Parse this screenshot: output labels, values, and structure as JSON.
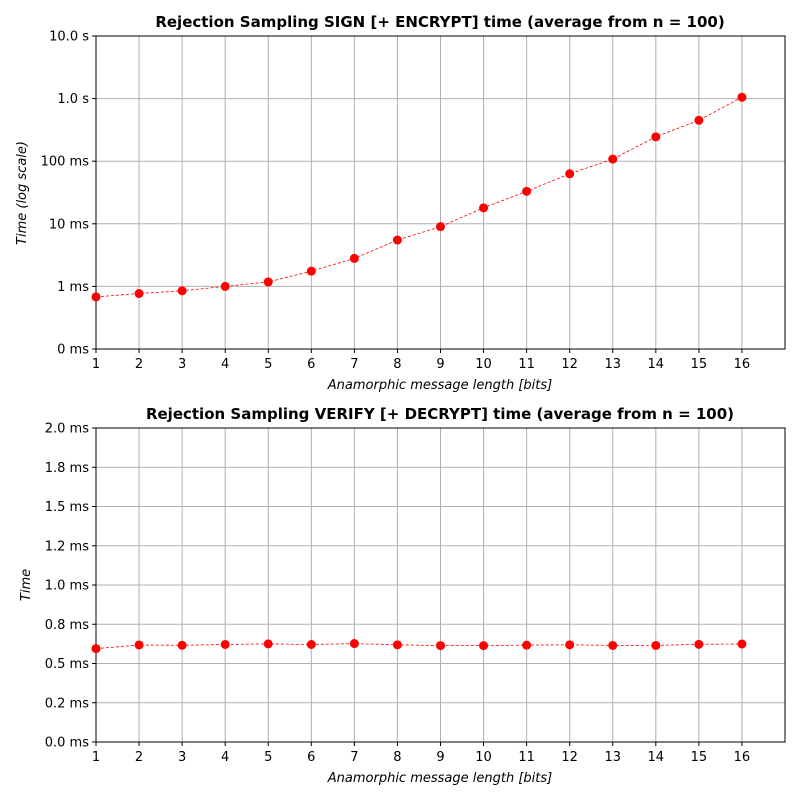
{
  "chart_data": [
    {
      "type": "line",
      "title": "Rejection Sampling SIGN [+ ENCRYPT] time (average from n = 100)",
      "xlabel": "Anamorphic message length [bits]",
      "ylabel": "Time (log scale)",
      "yscale": "log",
      "x": [
        1,
        2,
        3,
        4,
        5,
        6,
        7,
        8,
        9,
        10,
        11,
        12,
        13,
        14,
        15,
        16
      ],
      "xticks": [
        "1",
        "2",
        "3",
        "4",
        "5",
        "6",
        "7",
        "8",
        "9",
        "10",
        "11",
        "12",
        "13",
        "14",
        "15",
        "16"
      ],
      "xlim": [
        1,
        17
      ],
      "ylim_ms": [
        0.1,
        10000
      ],
      "yticks_ms": [
        0.1,
        1,
        10,
        100,
        1000,
        10000
      ],
      "ytick_labels": [
        "0 ms",
        "1 ms",
        "10 ms",
        "100 ms",
        "1.0 s",
        "10.0 s"
      ],
      "grid": true,
      "series": [
        {
          "color": "#ff0000",
          "values_ms": [
            0.68,
            0.77,
            0.85,
            1.0,
            1.18,
            1.75,
            2.8,
            5.5,
            9.0,
            18.0,
            33.0,
            63.0,
            108.0,
            245.0,
            450.0,
            1050.0
          ]
        }
      ]
    },
    {
      "type": "line",
      "title": "Rejection Sampling VERIFY [+ DECRYPT] time (average from n = 100)",
      "xlabel": "Anamorphic message length [bits]",
      "ylabel": "Time",
      "yscale": "linear",
      "x": [
        1,
        2,
        3,
        4,
        5,
        6,
        7,
        8,
        9,
        10,
        11,
        12,
        13,
        14,
        15,
        16
      ],
      "xticks": [
        "1",
        "2",
        "3",
        "4",
        "5",
        "6",
        "7",
        "8",
        "9",
        "10",
        "11",
        "12",
        "13",
        "14",
        "15",
        "16"
      ],
      "xlim": [
        1,
        17
      ],
      "ylim_ms": [
        0,
        2.0
      ],
      "yticks_ms": [
        0,
        0.25,
        0.5,
        0.75,
        1.0,
        1.25,
        1.5,
        1.75,
        2.0
      ],
      "ytick_labels": [
        "0.0 ms",
        "0.2 ms",
        "0.5 ms",
        "0.8 ms",
        "1.0 ms",
        "1.2 ms",
        "1.5 ms",
        "1.8 ms",
        "2.0 ms"
      ],
      "grid": true,
      "series": [
        {
          "color": "#ff0000",
          "values_ms": [
            0.595,
            0.618,
            0.616,
            0.621,
            0.625,
            0.621,
            0.627,
            0.619,
            0.614,
            0.614,
            0.617,
            0.619,
            0.615,
            0.615,
            0.622,
            0.624
          ]
        }
      ]
    }
  ]
}
